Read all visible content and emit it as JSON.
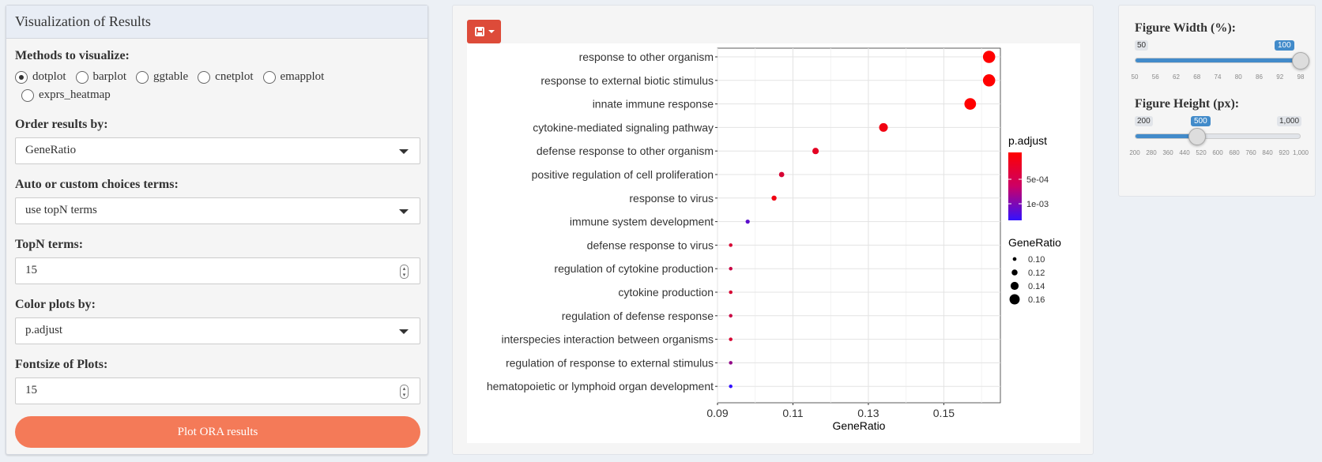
{
  "left_panel": {
    "title": "Visualization of Results",
    "methods": {
      "label": "Methods to visualize:",
      "options": [
        {
          "label": "dotplot",
          "checked": true
        },
        {
          "label": "barplot",
          "checked": false
        },
        {
          "label": "ggtable",
          "checked": false
        },
        {
          "label": "cnetplot",
          "checked": false
        },
        {
          "label": "emapplot",
          "checked": false
        },
        {
          "label": "exprs_heatmap",
          "checked": false
        }
      ]
    },
    "order_by": {
      "label": "Order results by:",
      "value": "GeneRatio"
    },
    "choice_terms": {
      "label": "Auto or custom choices terms:",
      "value": "use topN terms"
    },
    "topn": {
      "label": "TopN terms:",
      "value": "15"
    },
    "color_by": {
      "label": "Color plots by:",
      "value": "p.adjust"
    },
    "fontsize": {
      "label": "Fontsize of Plots:",
      "value": "15"
    },
    "plot_button": "Plot ORA results"
  },
  "center_panel": {
    "save_icon": "save-icon"
  },
  "chart_data": {
    "type": "scatter",
    "xlabel": "GeneRatio",
    "xlim": [
      0.09,
      0.165
    ],
    "xticks": [
      "0.09",
      "0.11",
      "0.13",
      "0.15"
    ],
    "categories": [
      "response to other organism",
      "response to external biotic stimulus",
      "innate immune response",
      "cytokine-mediated signaling pathway",
      "defense response to other organism",
      "positive regulation of cell proliferation",
      "response to virus",
      "immune system development",
      "defense response to virus",
      "regulation of cytokine production",
      "cytokine production",
      "regulation of defense response",
      "interspecies interaction between organisms",
      "regulation of response to external stimulus",
      "hematopoietic or lymphoid organ development"
    ],
    "x": [
      0.162,
      0.162,
      0.157,
      0.134,
      0.116,
      0.107,
      0.105,
      0.098,
      0.0935,
      0.0935,
      0.0935,
      0.0935,
      0.0935,
      0.0935,
      0.0935
    ],
    "p_adjust": [
      0.0,
      0.0,
      0.0,
      0.0001,
      0.0002,
      0.0003,
      0.0001,
      0.0012,
      0.0003,
      0.0004,
      0.0003,
      0.0004,
      0.0003,
      0.0008,
      0.0015
    ],
    "color_legend": {
      "title": "p.adjust",
      "labels": [
        "5e-04",
        "1e-03"
      ],
      "colors": [
        "#ff0000",
        "#0000ff"
      ]
    },
    "size_legend": {
      "title": "GeneRatio",
      "labels": [
        "0.10",
        "0.12",
        "0.14",
        "0.16"
      ],
      "values": [
        0.1,
        0.12,
        0.14,
        0.16
      ]
    },
    "grid": true,
    "legend_position": "right"
  },
  "right_panel": {
    "width_slider": {
      "label": "Figure Width (%):",
      "min": "50",
      "max": "100",
      "value": "100",
      "fraction": 1.0,
      "ticks": [
        "50",
        "56",
        "62",
        "68",
        "74",
        "80",
        "86",
        "92",
        "98"
      ]
    },
    "height_slider": {
      "label": "Figure Height (px):",
      "min": "200",
      "max": "1,000",
      "value": "500",
      "fraction": 0.375,
      "ticks": [
        "200",
        "280",
        "360",
        "440",
        "520",
        "600",
        "680",
        "760",
        "840",
        "920",
        "1,000"
      ]
    }
  }
}
